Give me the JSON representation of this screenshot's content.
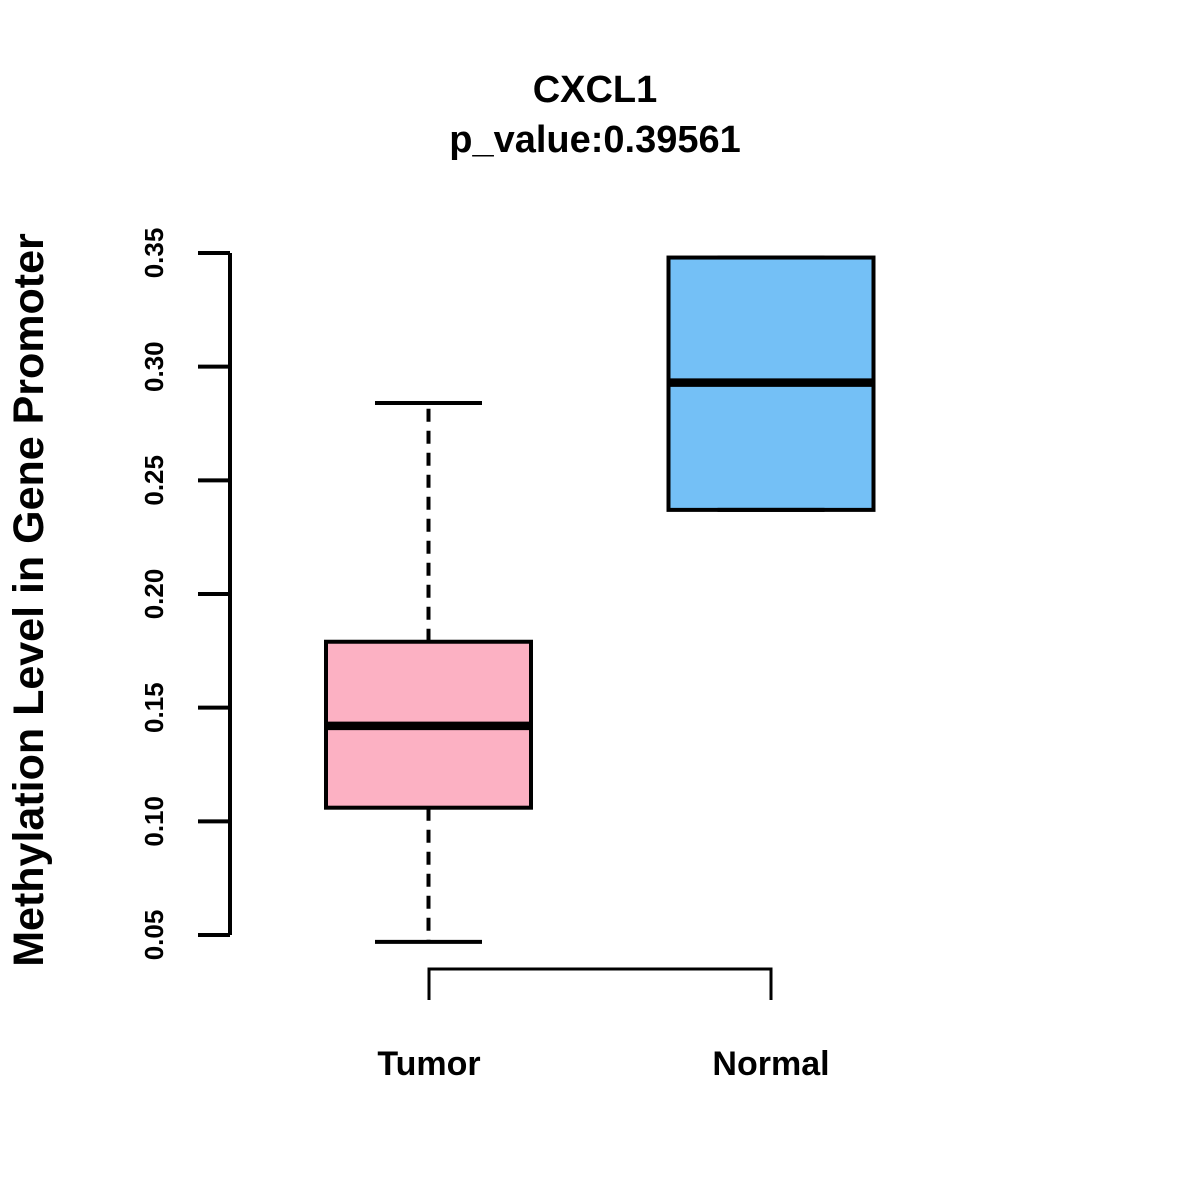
{
  "figure": {
    "background_color": "#ffffff",
    "foreground_color": "#000000"
  },
  "chart_data": {
    "type": "boxplot",
    "title": "CXCL1",
    "subtitle": "p_value:0.39561",
    "ylabel": "Methylation Level in Gene Promoter",
    "xlabel": "",
    "categories": [
      "Tumor",
      "Normal"
    ],
    "ylim": [
      0.05,
      0.35
    ],
    "yticks": [
      0.05,
      0.1,
      0.15,
      0.2,
      0.25,
      0.3,
      0.35
    ],
    "grid": false,
    "legend": "none",
    "series": [
      {
        "name": "Tumor",
        "color": "#FCB1C3",
        "border_color": "#000000",
        "whisker_low": 0.047,
        "q1": 0.106,
        "median": 0.142,
        "q3": 0.179,
        "whisker_high": 0.284
      },
      {
        "name": "Normal",
        "color": "#74C0F6",
        "border_color": "#000000",
        "whisker_low": 0.237,
        "q1": 0.237,
        "median": 0.293,
        "q3": 0.348,
        "whisker_high": 0.348
      }
    ]
  }
}
